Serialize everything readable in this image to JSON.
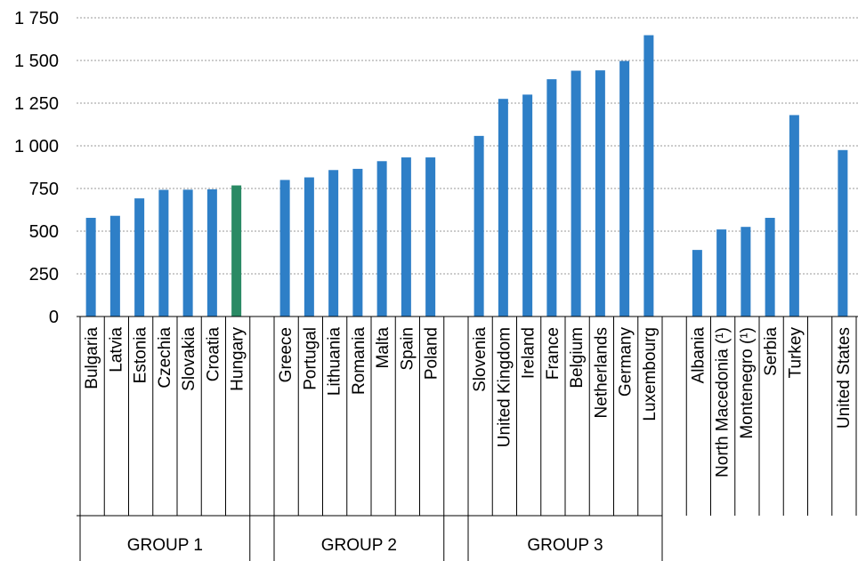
{
  "chart_data": {
    "type": "bar",
    "title": "",
    "xlabel": "",
    "ylabel": "",
    "ylim": [
      0,
      1750
    ],
    "yticks": [
      0,
      250,
      500,
      750,
      1000,
      1250,
      1500,
      1750
    ],
    "ytick_labels": [
      "0",
      "250",
      "500",
      "750",
      "1 000",
      "1 250",
      "1 500",
      "1 750"
    ],
    "grid": "horizontal-dotted",
    "colors": {
      "default": "#2e7fc7",
      "highlight": "#2a8a64"
    },
    "categories": [
      "Bulgaria",
      "Latvia",
      "Estonia",
      "Czechia",
      "Slovakia",
      "Croatia",
      "Hungary",
      "Greece",
      "Portugal",
      "Lithuania",
      "Romania",
      "Malta",
      "Spain",
      "Poland",
      "Slovenia",
      "United Kingdom",
      "Ireland",
      "France",
      "Belgium",
      "Netherlands",
      "Germany",
      "Luxembourg",
      "Albania",
      "North Macedonia (¹)",
      "Montenegro (¹)",
      "Serbia",
      "Turkey",
      "United States"
    ],
    "values": [
      578,
      590,
      692,
      742,
      743,
      745,
      768,
      800,
      815,
      858,
      865,
      910,
      932,
      932,
      1058,
      1275,
      1300,
      1390,
      1440,
      1442,
      1497,
      1648,
      390,
      510,
      525,
      578,
      1180,
      975
    ],
    "highlight": [
      "Hungary"
    ],
    "groups": [
      {
        "label": "GROUP 1",
        "members": [
          "Bulgaria",
          "Latvia",
          "Estonia",
          "Czechia",
          "Slovakia",
          "Croatia",
          "Hungary"
        ]
      },
      {
        "label": "GROUP 2",
        "members": [
          "Greece",
          "Portugal",
          "Lithuania",
          "Romania",
          "Malta",
          "Spain",
          "Poland"
        ]
      },
      {
        "label": "GROUP 3",
        "members": [
          "Slovenia",
          "United Kingdom",
          "Ireland",
          "France",
          "Belgium",
          "Netherlands",
          "Germany",
          "Luxembourg"
        ]
      },
      {
        "label": "",
        "members": [
          "Albania",
          "North Macedonia (¹)",
          "Montenegro (¹)",
          "Serbia",
          "Turkey"
        ]
      },
      {
        "label": "",
        "members": [
          "United States"
        ]
      }
    ]
  }
}
